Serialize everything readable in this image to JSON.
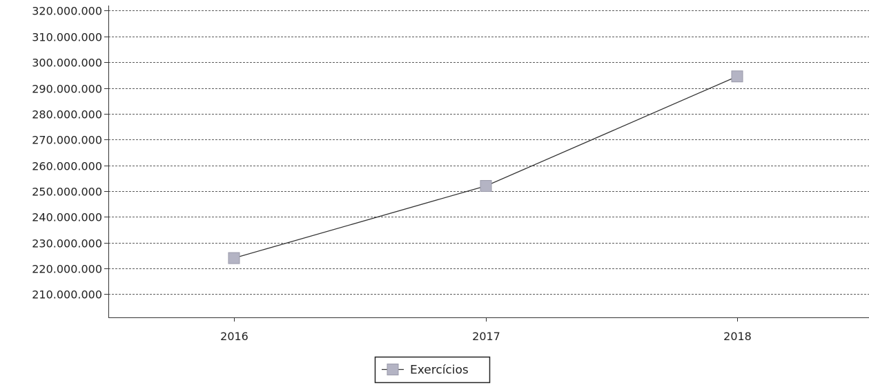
{
  "chart_data": {
    "type": "line",
    "title": "",
    "xlabel": "",
    "ylabel": "",
    "categories": [
      "2016",
      "2017",
      "2018"
    ],
    "series": [
      {
        "name": "Exercícios",
        "values": [
          224000000,
          252000000,
          294500000
        ],
        "color": "#333333",
        "marker_color": "#b4b4c4"
      }
    ],
    "ylim": [
      201000000,
      322000000
    ],
    "y_ticks": [
      210000000,
      220000000,
      230000000,
      240000000,
      250000000,
      260000000,
      270000000,
      280000000,
      290000000,
      300000000,
      310000000,
      320000000
    ],
    "y_tick_labels": [
      "210.000.000",
      "220.000.000",
      "230.000.000",
      "240.000.000",
      "250.000.000",
      "260.000.000",
      "270.000.000",
      "280.000.000",
      "290.000.000",
      "300.000.000",
      "310.000.000",
      "320.000.000"
    ],
    "grid": true,
    "legend_position": "bottom-center",
    "legend": [
      {
        "label": "Exercícios"
      }
    ]
  }
}
